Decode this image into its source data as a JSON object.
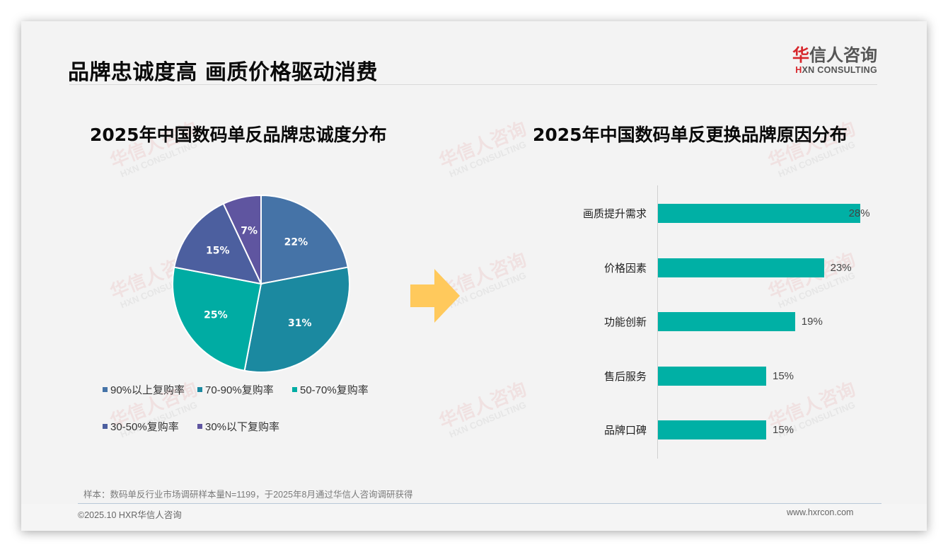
{
  "header": {
    "page_title": "品牌忠诚度高 画质价格驱动消费",
    "logo": {
      "cn_red": "华",
      "cn_rest": "信人咨询",
      "en_red": "H",
      "en_rest": "XN CONSULTING"
    }
  },
  "watermark": {
    "cn": "华信人咨询",
    "en": "HXN CONSULTING"
  },
  "colors": {
    "background": "#f3f3f3",
    "pie": [
      "#4573a7",
      "#1b89a0",
      "#00aca3",
      "#4c5f9f",
      "#5f55a0"
    ],
    "bar": "#00b0a5",
    "arrow": "#ffc95c",
    "logo_red": "#d7262b"
  },
  "left_chart": {
    "title": "2025年中国数码单反品牌忠诚度分布"
  },
  "right_chart": {
    "title": "2025年中国数码单反更换品牌原因分布"
  },
  "chart_data": [
    {
      "type": "pie",
      "title": "2025年中国数码单反品牌忠诚度分布",
      "categories": [
        "90%以上复购率",
        "70-90%复购率",
        "50-70%复购率",
        "30-50%复购率",
        "30%以下复购率"
      ],
      "values": [
        22,
        31,
        25,
        15,
        7
      ],
      "labels": [
        "22%",
        "31%",
        "25%",
        "15%",
        "7%"
      ],
      "start_angle": "12 o'clock, clockwise",
      "legend_position": "bottom"
    },
    {
      "type": "bar",
      "orientation": "horizontal",
      "title": "2025年中国数码单反更换品牌原因分布",
      "categories": [
        "画质提升需求",
        "价格因素",
        "功能创新",
        "售后服务",
        "品牌口碑"
      ],
      "values": [
        28,
        23,
        19,
        15,
        15
      ],
      "labels": [
        "28%",
        "23%",
        "19%",
        "15%",
        "15%"
      ],
      "xlabel": "",
      "ylabel": "",
      "grid": false
    }
  ],
  "footer": {
    "note": "样本：数码单反行业市场调研样本量N=1199，于2025年8月通过华信人咨询调研获得",
    "copyright": "©2025.10 HXR华信人咨询",
    "website": "www.hxrcon.com"
  }
}
